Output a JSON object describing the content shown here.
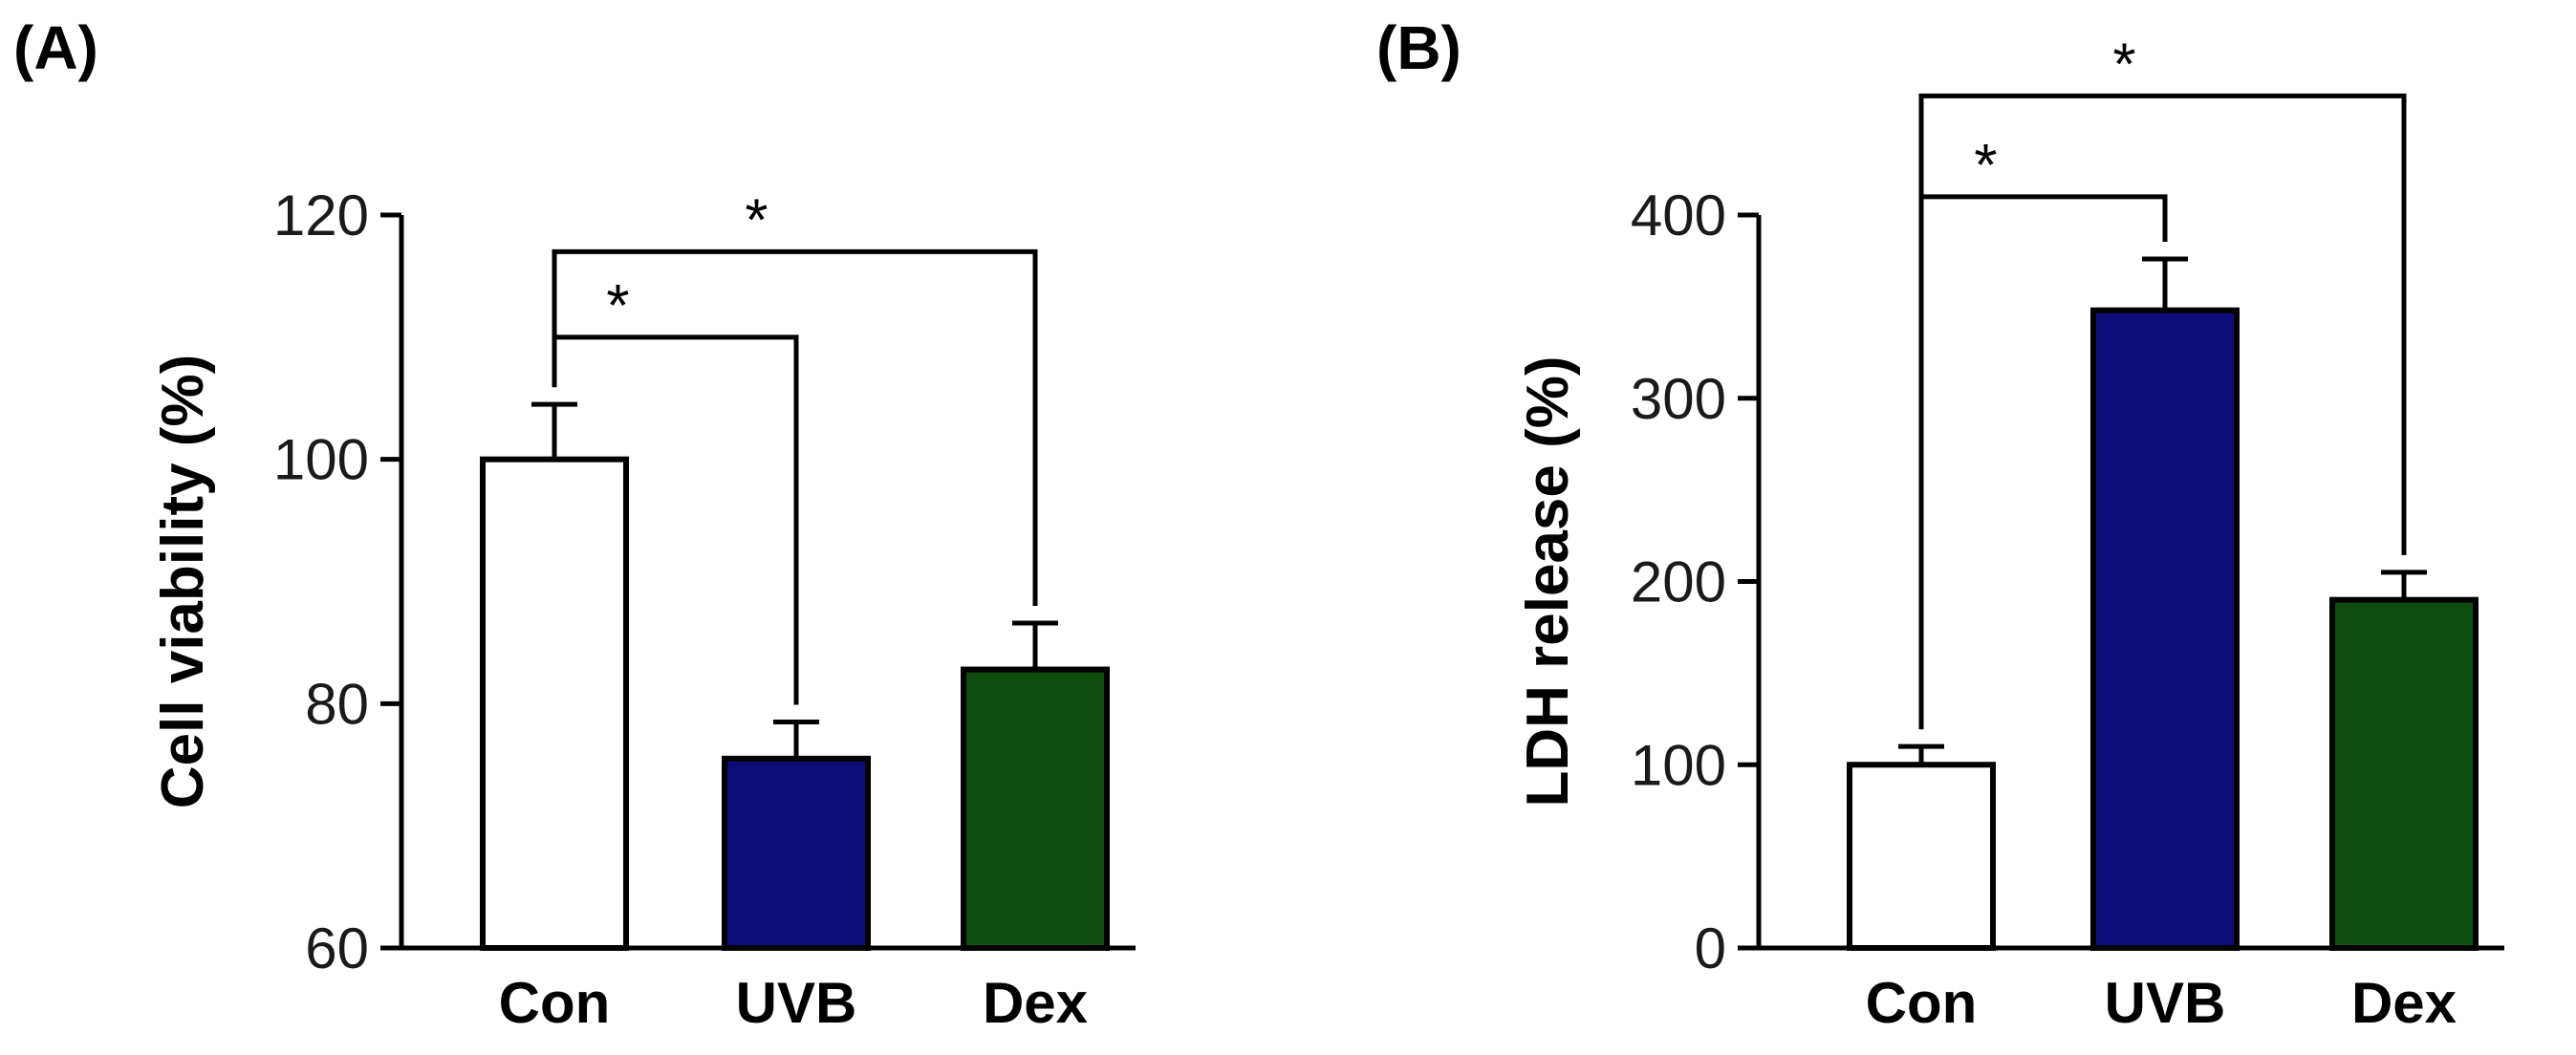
{
  "chart_data": [
    {
      "type": "bar",
      "panel_label": "(A)",
      "ylabel": "Cell viability (%)",
      "xlabel": "",
      "categories": [
        "Con",
        "UVB",
        "Dex"
      ],
      "values": [
        100,
        75.5,
        82.8
      ],
      "errors": [
        4.5,
        3,
        3.8
      ],
      "colors": [
        "#ffffff",
        "#0d0d7a",
        "#0e4d0e"
      ],
      "ylim": [
        60,
        120
      ],
      "yticks": [
        "60",
        "80",
        "100",
        "120"
      ],
      "ytick_values": [
        60,
        80,
        100,
        120
      ],
      "grid": false,
      "significance": [
        {
          "from": "Con",
          "to": "UVB",
          "label": "*",
          "level": 110
        },
        {
          "from": "Con",
          "to": "Dex",
          "label": "*",
          "level": 117
        }
      ]
    },
    {
      "type": "bar",
      "panel_label": "(B)",
      "ylabel": "LDH release (%)",
      "xlabel": "",
      "categories": [
        "Con",
        "UVB",
        "Dex"
      ],
      "values": [
        100,
        348,
        190
      ],
      "errors": [
        10,
        28,
        15
      ],
      "colors": [
        "#ffffff",
        "#0d0d7a",
        "#0e4d0e"
      ],
      "ylim": [
        0,
        400
      ],
      "yticks": [
        "0",
        "100",
        "200",
        "300",
        "400"
      ],
      "ytick_values": [
        0,
        100,
        200,
        300,
        400
      ],
      "grid": false,
      "significance": [
        {
          "from": "Con",
          "to": "UVB",
          "label": "*",
          "level": 410
        },
        {
          "from": "Con",
          "to": "Dex",
          "label": "*",
          "level": 465
        }
      ]
    }
  ]
}
